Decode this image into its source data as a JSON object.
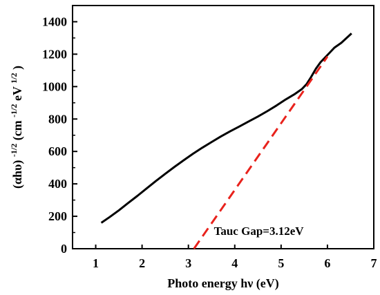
{
  "chart_data": {
    "type": "line",
    "xlabel": "Photo energy hν (eV)",
    "ylabel_parts": {
      "a": "(αhυ)",
      "a_sup": "-1/2",
      "b": " (cm",
      "b_sup": "-1/2",
      "c": "eV",
      "c_sup": "1/2",
      "d": ")"
    },
    "xlim": [
      0.5,
      7
    ],
    "ylim": [
      0,
      1500
    ],
    "xticks": [
      1,
      2,
      3,
      4,
      5,
      6,
      7
    ],
    "yticks": [
      0,
      200,
      400,
      600,
      800,
      1000,
      1200,
      1400
    ],
    "grid": false,
    "series": [
      {
        "style": "solid",
        "color": "#000000",
        "x": [
          1.12,
          1.3,
          1.5,
          1.7,
          1.9,
          2.1,
          2.3,
          2.5,
          2.7,
          2.9,
          3.1,
          3.3,
          3.5,
          3.7,
          3.9,
          4.1,
          4.3,
          4.5,
          4.7,
          4.9,
          5.1,
          5.3,
          5.45,
          5.55,
          5.65,
          5.75,
          5.85,
          5.95,
          6.05,
          6.15,
          6.3,
          6.52
        ],
        "y": [
          160,
          195,
          237,
          282,
          326,
          372,
          418,
          462,
          505,
          546,
          586,
          623,
          658,
          692,
          724,
          754,
          785,
          815,
          848,
          883,
          921,
          955,
          985,
          1015,
          1060,
          1110,
          1150,
          1180,
          1210,
          1240,
          1270,
          1328
        ]
      },
      {
        "style": "dashed",
        "color": "#e8221c",
        "x": [
          3.12,
          6.0
        ],
        "y": [
          0,
          1185
        ]
      }
    ],
    "annotations": [
      {
        "text": "Tauc Gap=3.12eV",
        "x": 3.55,
        "y": 85
      }
    ]
  }
}
